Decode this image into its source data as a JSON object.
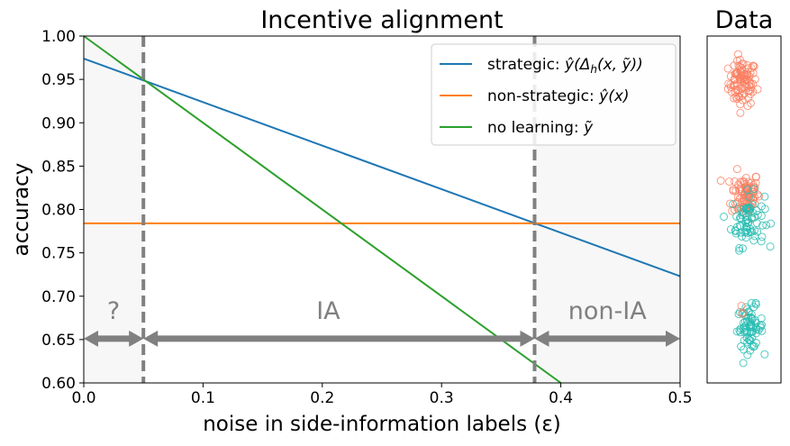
{
  "chart_data": [
    {
      "type": "line",
      "title": "Incentive alignment",
      "xlabel": "noise in side-information labels (ε)",
      "ylabel": "accuracy",
      "xlim": [
        0,
        0.5
      ],
      "ylim": [
        0.6,
        1.0
      ],
      "x_ticks": [
        0,
        0.1,
        0.2,
        0.3,
        0.4,
        0.5
      ],
      "x_tick_labels": [
        "0.0",
        "0.1",
        "0.2",
        "0.3",
        "0.4",
        "0.5"
      ],
      "y_ticks": [
        0.6,
        0.65,
        0.7,
        0.75,
        0.8,
        0.85,
        0.9,
        0.95,
        1.0
      ],
      "y_tick_labels": [
        "0.60",
        "0.65",
        "0.70",
        "0.75",
        "0.80",
        "0.85",
        "0.90",
        "0.95",
        "1.00"
      ],
      "grid": false,
      "legend_position": "top-right",
      "series": [
        {
          "name": "strategic",
          "color": "#1f77b4",
          "x": [
            0,
            0.5
          ],
          "y": [
            0.974,
            0.723
          ]
        },
        {
          "name": "non-strategic",
          "color": "#ff7f0e",
          "x": [
            0,
            0.5
          ],
          "y": [
            0.784,
            0.784
          ]
        },
        {
          "name": "no learning",
          "color": "#2ca02c",
          "x": [
            0,
            0.4
          ],
          "y": [
            1.0,
            0.6
          ]
        }
      ],
      "legend": [
        {
          "prefix": "strategic: ",
          "math_base": "ŷ",
          "math_rest": "(Δ",
          "math_sub": "h",
          "math_tail": "(x, ỹ))"
        },
        {
          "prefix": "non-strategic: ",
          "math_base": "ŷ",
          "math_rest": "(x)"
        },
        {
          "prefix": "no learning: ",
          "math_base": "ỹ"
        }
      ],
      "vertical_lines": [
        0.05,
        0.378
      ],
      "shaded_regions": [
        [
          0,
          0.05
        ],
        [
          0.378,
          0.5
        ]
      ],
      "region_labels": [
        {
          "text": "?",
          "x": 0.025,
          "y": 0.683
        },
        {
          "text": "IA",
          "x": 0.205,
          "y": 0.683
        },
        {
          "text": "non-IA",
          "x": 0.439,
          "y": 0.683
        }
      ],
      "arrow_y": 0.651,
      "arrows": [
        [
          0,
          0.05
        ],
        [
          0.05,
          0.378
        ],
        [
          0.378,
          0.5
        ]
      ]
    },
    {
      "type": "scatter",
      "title": "Data",
      "clusters": [
        {
          "center": [
            0.48,
            0.865
          ],
          "spread": 0.06,
          "color": "#fa7f62",
          "count": 95
        },
        {
          "center": [
            0.52,
            0.545
          ],
          "spread": 0.06,
          "color": "#fa7f62",
          "count": 85
        },
        {
          "center": [
            0.55,
            0.47
          ],
          "spread": 0.07,
          "color": "#25bcb2",
          "count": 70
        },
        {
          "center": [
            0.58,
            0.16
          ],
          "spread": 0.055,
          "color": "#25bcb2",
          "count": 70
        },
        {
          "center": [
            0.45,
            0.19
          ],
          "spread": 0.03,
          "color": "#fa7f62",
          "count": 3
        }
      ]
    }
  ]
}
